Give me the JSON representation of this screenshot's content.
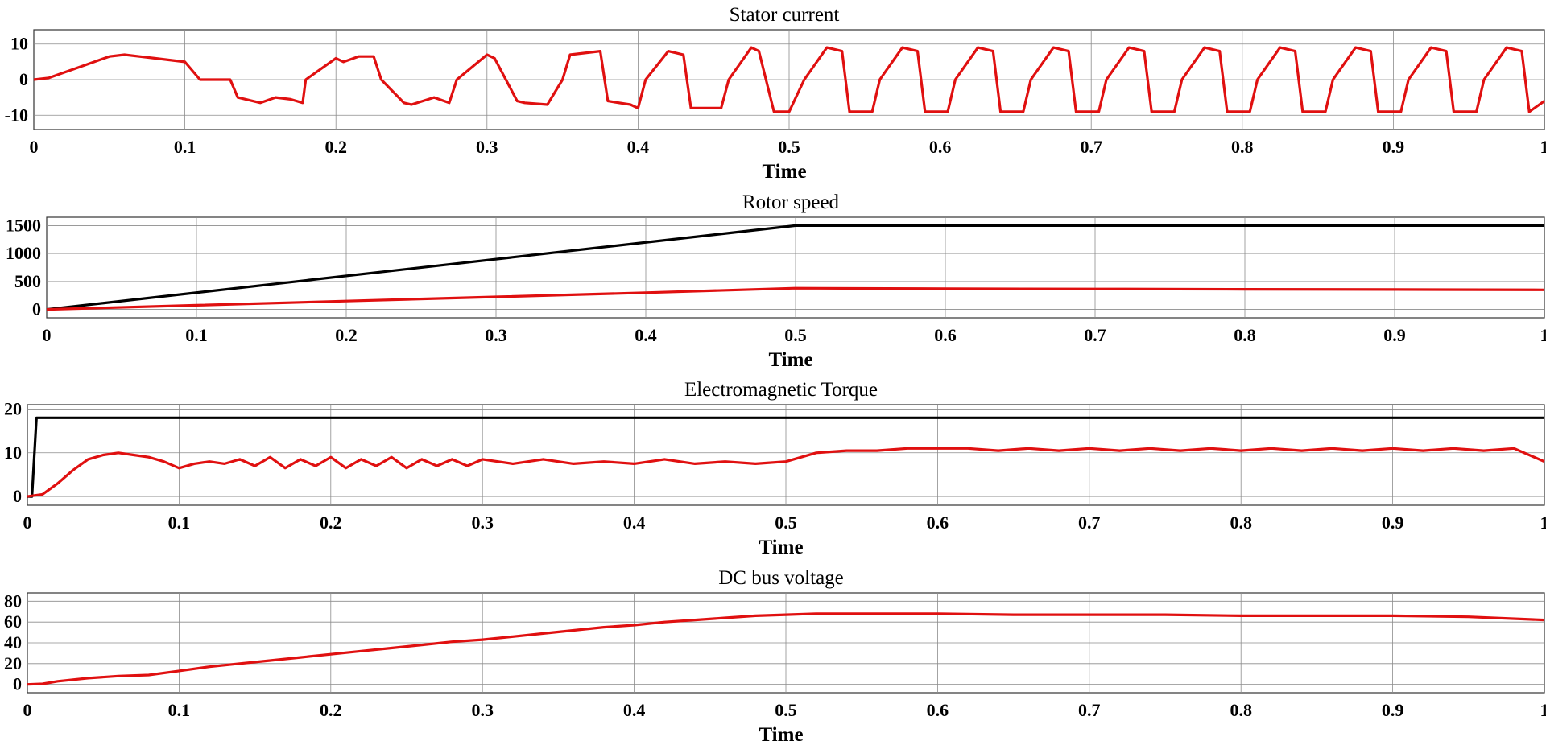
{
  "colors": {
    "reference": "#000000",
    "measured": "#e01010",
    "grid": "#8c8c8c"
  },
  "chart_data": [
    {
      "type": "line",
      "title": "Stator current",
      "xlabel": "Time",
      "ylabel": "",
      "xlim": [
        0,
        1
      ],
      "ylim": [
        -14,
        14
      ],
      "xticks": [
        0,
        0.1,
        0.2,
        0.3,
        0.4,
        0.5,
        0.6,
        0.7,
        0.8,
        0.9,
        1
      ],
      "xtick_labels": [
        "0",
        "0.1",
        "0.2",
        "0.3",
        "0.4",
        "0.5",
        "0.6",
        "0.7",
        "0.8",
        "0.9",
        "1"
      ],
      "yticks": [
        10,
        0,
        -10
      ],
      "ytick_labels": [
        "10",
        "0",
        "-10"
      ],
      "grid": true,
      "series": [
        {
          "color": "#e01010",
          "x": [
            0,
            0.01,
            0.02,
            0.03,
            0.04,
            0.05,
            0.06,
            0.07,
            0.08,
            0.09,
            0.1,
            0.11,
            0.13,
            0.135,
            0.15,
            0.16,
            0.17,
            0.178,
            0.18,
            0.2,
            0.205,
            0.215,
            0.225,
            0.23,
            0.245,
            0.25,
            0.265,
            0.275,
            0.28,
            0.3,
            0.305,
            0.32,
            0.325,
            0.34,
            0.35,
            0.355,
            0.375,
            0.38,
            0.395,
            0.4,
            0.405,
            0.42,
            0.43,
            0.435,
            0.455,
            0.46,
            0.475,
            0.48,
            0.49,
            0.5,
            0.51,
            0.525,
            0.535,
            0.54,
            0.555,
            0.56,
            0.575,
            0.585,
            0.59,
            0.605,
            0.61,
            0.625,
            0.635,
            0.64,
            0.655,
            0.66,
            0.675,
            0.685,
            0.69,
            0.705,
            0.71,
            0.725,
            0.735,
            0.74,
            0.755,
            0.76,
            0.775,
            0.785,
            0.79,
            0.805,
            0.81,
            0.825,
            0.835,
            0.84,
            0.855,
            0.86,
            0.875,
            0.885,
            0.89,
            0.905,
            0.91,
            0.925,
            0.935,
            0.94,
            0.955,
            0.96,
            0.975,
            0.985,
            0.99,
            1
          ],
          "y": [
            0,
            0.5,
            2,
            3.5,
            5,
            6.5,
            7,
            6.5,
            6,
            5.5,
            5,
            0,
            0,
            -5,
            -6.5,
            -5,
            -5.5,
            -6.5,
            0,
            6,
            5,
            6.5,
            6.5,
            0,
            -6.5,
            -7,
            -5,
            -6.5,
            0,
            7,
            6,
            -6,
            -6.5,
            -7,
            0,
            7,
            8,
            -6,
            -7,
            -8,
            0,
            8,
            7,
            -8,
            -8,
            0,
            9,
            8,
            -9,
            -9,
            0,
            9,
            8,
            -9,
            -9,
            0,
            9,
            8,
            -9,
            -9,
            0,
            9,
            8,
            -9,
            -9,
            0,
            9,
            8,
            -9,
            -9,
            0,
            9,
            8,
            -9,
            -9,
            0,
            9,
            8,
            -9,
            -9,
            0,
            9,
            8,
            -9,
            -9,
            0,
            9,
            8,
            -9,
            -9,
            0,
            9,
            8,
            -9,
            -9,
            0,
            9,
            8,
            -9,
            -6
          ]
        }
      ]
    },
    {
      "type": "line",
      "title": "Rotor speed",
      "xlabel": "Time",
      "ylabel": "",
      "xlim": [
        0,
        1
      ],
      "ylim": [
        -150,
        1650
      ],
      "xticks": [
        0,
        0.1,
        0.2,
        0.3,
        0.4,
        0.5,
        0.6,
        0.7,
        0.8,
        0.9,
        1
      ],
      "xtick_labels": [
        "0",
        "0.1",
        "0.2",
        "0.3",
        "0.4",
        "0.5",
        "0.6",
        "0.7",
        "0.8",
        "0.9",
        "1"
      ],
      "yticks": [
        1500,
        1000,
        500,
        0
      ],
      "ytick_labels": [
        "1500",
        "1000",
        "500",
        "0"
      ],
      "grid": true,
      "series": [
        {
          "color": "#000000",
          "x": [
            0,
            0.5,
            1
          ],
          "y": [
            0,
            1500,
            1500
          ]
        },
        {
          "color": "#e01010",
          "x": [
            0,
            0.1,
            0.2,
            0.3,
            0.4,
            0.5,
            0.6,
            0.7,
            0.8,
            0.9,
            1
          ],
          "y": [
            0,
            75,
            150,
            225,
            300,
            380,
            370,
            365,
            360,
            355,
            350
          ]
        }
      ]
    },
    {
      "type": "line",
      "title": "Electromagnetic Torque",
      "xlabel": "Time",
      "ylabel": "",
      "xlim": [
        0,
        1
      ],
      "ylim": [
        -2,
        21
      ],
      "xticks": [
        0,
        0.1,
        0.2,
        0.3,
        0.4,
        0.5,
        0.6,
        0.7,
        0.8,
        0.9,
        1
      ],
      "xtick_labels": [
        "0",
        "0.1",
        "0.2",
        "0.3",
        "0.4",
        "0.5",
        "0.6",
        "0.7",
        "0.8",
        "0.9",
        "1"
      ],
      "yticks": [
        20,
        10,
        0
      ],
      "ytick_labels": [
        "20",
        "10",
        "0"
      ],
      "grid": true,
      "series": [
        {
          "color": "#000000",
          "x": [
            0,
            0.003,
            0.006,
            1
          ],
          "y": [
            0,
            0,
            18,
            18
          ]
        },
        {
          "color": "#e01010",
          "x": [
            0,
            0.01,
            0.02,
            0.03,
            0.04,
            0.05,
            0.06,
            0.07,
            0.08,
            0.09,
            0.1,
            0.11,
            0.12,
            0.13,
            0.14,
            0.15,
            0.16,
            0.17,
            0.18,
            0.19,
            0.2,
            0.21,
            0.22,
            0.23,
            0.24,
            0.25,
            0.26,
            0.27,
            0.28,
            0.29,
            0.3,
            0.32,
            0.34,
            0.36,
            0.38,
            0.4,
            0.42,
            0.44,
            0.46,
            0.48,
            0.5,
            0.52,
            0.54,
            0.56,
            0.58,
            0.6,
            0.62,
            0.64,
            0.66,
            0.68,
            0.7,
            0.72,
            0.74,
            0.76,
            0.78,
            0.8,
            0.82,
            0.84,
            0.86,
            0.88,
            0.9,
            0.92,
            0.94,
            0.96,
            0.98,
            1
          ],
          "y": [
            0,
            0.5,
            3,
            6,
            8.5,
            9.5,
            10,
            9.5,
            9,
            8,
            6.5,
            7.5,
            8,
            7.5,
            8.5,
            7,
            9,
            6.5,
            8.5,
            7,
            9,
            6.5,
            8.5,
            7,
            9,
            6.5,
            8.5,
            7,
            8.5,
            7,
            8.5,
            7.5,
            8.5,
            7.5,
            8,
            7.5,
            8.5,
            7.5,
            8,
            7.5,
            8,
            10,
            10.5,
            10.5,
            11,
            11,
            11,
            10.5,
            11,
            10.5,
            11,
            10.5,
            11,
            10.5,
            11,
            10.5,
            11,
            10.5,
            11,
            10.5,
            11,
            10.5,
            11,
            10.5,
            11,
            8
          ]
        }
      ]
    },
    {
      "type": "line",
      "title": "DC bus voltage",
      "xlabel": "Time",
      "ylabel": "",
      "xlim": [
        0,
        1
      ],
      "ylim": [
        -8,
        88
      ],
      "xticks": [
        0,
        0.1,
        0.2,
        0.3,
        0.4,
        0.5,
        0.6,
        0.7,
        0.8,
        0.9,
        1
      ],
      "xtick_labels": [
        "0",
        "0.1",
        "0.2",
        "0.3",
        "0.4",
        "0.5",
        "0.6",
        "0.7",
        "0.8",
        "0.9",
        "1"
      ],
      "yticks": [
        80,
        60,
        40,
        20,
        0
      ],
      "ytick_labels": [
        "80",
        "60",
        "40",
        "20",
        "0"
      ],
      "grid": true,
      "series": [
        {
          "color": "#e01010",
          "x": [
            0,
            0.01,
            0.02,
            0.04,
            0.06,
            0.08,
            0.1,
            0.12,
            0.14,
            0.16,
            0.18,
            0.2,
            0.22,
            0.24,
            0.26,
            0.28,
            0.3,
            0.32,
            0.34,
            0.36,
            0.38,
            0.4,
            0.42,
            0.44,
            0.46,
            0.48,
            0.5,
            0.52,
            0.54,
            0.56,
            0.58,
            0.6,
            0.65,
            0.7,
            0.75,
            0.8,
            0.85,
            0.9,
            0.95,
            1
          ],
          "y": [
            0,
            0.5,
            3,
            6,
            8,
            9,
            13,
            17,
            20,
            23,
            26,
            29,
            32,
            35,
            38,
            41,
            43,
            46,
            49,
            52,
            55,
            57,
            60,
            62,
            64,
            66,
            67,
            68,
            68,
            68,
            68,
            68,
            67,
            67,
            67,
            66,
            66,
            66,
            65,
            62
          ]
        }
      ]
    }
  ]
}
